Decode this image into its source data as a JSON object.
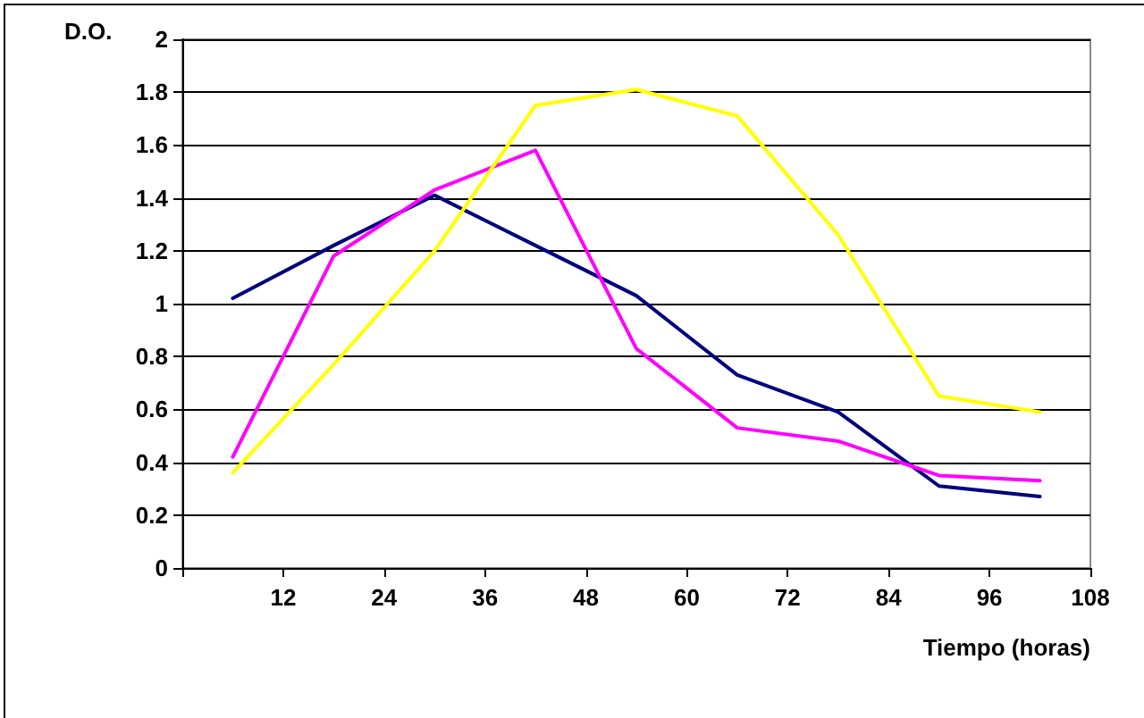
{
  "chart_data": {
    "type": "line",
    "ylabel": "D.O.",
    "xlabel": "Tiempo (horas)",
    "x": [
      6,
      18,
      30,
      42,
      54,
      66,
      78,
      90,
      102
    ],
    "series": [
      {
        "color": "#000080",
        "values": [
          1.02,
          1.22,
          1.41,
          1.22,
          1.03,
          0.73,
          0.59,
          0.31,
          0.27
        ]
      },
      {
        "color": "#ff00ff",
        "values": [
          0.42,
          1.18,
          1.43,
          1.58,
          0.83,
          0.53,
          0.48,
          0.35,
          0.33
        ]
      },
      {
        "color": "#ffff00",
        "values": [
          0.36,
          0.77,
          1.2,
          1.75,
          1.81,
          1.71,
          1.26,
          0.65,
          0.59
        ]
      }
    ],
    "xlim": [
      0,
      108
    ],
    "xticks": [
      {
        "value": 0,
        "label": null
      },
      12,
      24,
      36,
      48,
      60,
      72,
      84,
      96,
      108
    ],
    "ylim": [
      0,
      2
    ],
    "yticks": [
      0,
      0.2,
      0.4,
      0.6,
      0.8,
      1,
      1.2,
      1.4,
      1.6,
      1.8,
      2
    ],
    "grid": "y",
    "marker": "none",
    "line_style": "solid"
  }
}
